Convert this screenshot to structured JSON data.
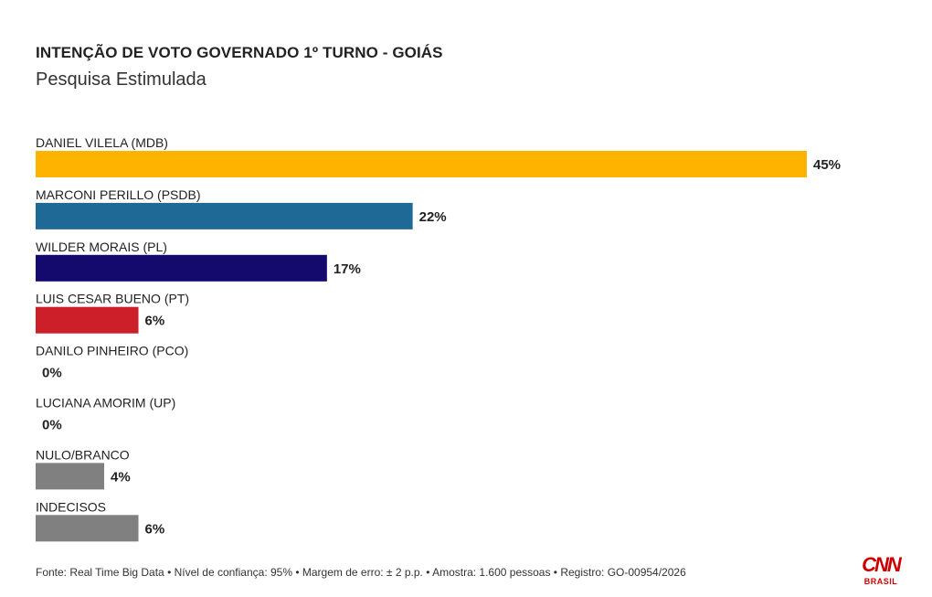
{
  "header": {
    "title": "INTENÇÃO DE VOTO GOVERNADO 1º TURNO - GOIÁS",
    "subtitle": "Pesquisa Estimulada"
  },
  "chart_data": {
    "type": "bar",
    "orientation": "horizontal",
    "categories": [
      "DANIEL VILELA (MDB)",
      "MARCONI PERILLO (PSDB)",
      "WILDER MORAIS (PL)",
      "LUIS CESAR BUENO (PT)",
      "DANILO PINHEIRO (PCO)",
      "LUCIANA AMORIM (UP)",
      "NULO/BRANCO",
      "INDECISOS"
    ],
    "values": [
      45,
      22,
      17,
      6,
      0,
      0,
      4,
      6
    ],
    "value_labels": [
      "45%",
      "22%",
      "17%",
      "6%",
      "0%",
      "0%",
      "4%",
      "6%"
    ],
    "colors": [
      "#FDB300",
      "#1F6996",
      "#140A6E",
      "#CC1F2A",
      "#888888",
      "#888888",
      "#808080",
      "#808080"
    ],
    "xlim": [
      0,
      45
    ],
    "grid": false,
    "legend": "none"
  },
  "footer": {
    "source": "Fonte: Real Time Big Data • Nível de confiança: 95% • Margem de erro: ± 2 p.p. • Amostra: 1.600 pessoas • Registro: GO-00954/2026"
  },
  "logo": {
    "mark": "CNN",
    "sub": "BRASIL",
    "color": "#CC0000"
  }
}
